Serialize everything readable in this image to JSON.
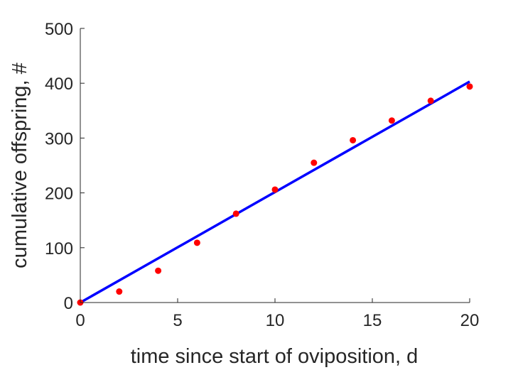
{
  "chart_data": {
    "type": "scatter",
    "title": "",
    "xlabel": "time since start of oviposition, d",
    "ylabel": "cumulative offspring, #",
    "xlim": [
      0,
      20
    ],
    "ylim": [
      0,
      500
    ],
    "xticks": [
      "0",
      "5",
      "10",
      "15",
      "20"
    ],
    "yticks": [
      "0",
      "100",
      "200",
      "300",
      "400",
      "500"
    ],
    "grid": false,
    "series": [
      {
        "kind": "points",
        "color": "#ff0000",
        "x": [
          0,
          2,
          4,
          6,
          8,
          10,
          12,
          14,
          16,
          18,
          20
        ],
        "y": [
          0,
          20,
          58,
          109,
          162,
          206,
          255,
          296,
          332,
          368,
          394
        ]
      },
      {
        "kind": "line",
        "color": "#0000ff",
        "x": [
          0,
          20
        ],
        "y": [
          0,
          403
        ]
      }
    ]
  }
}
